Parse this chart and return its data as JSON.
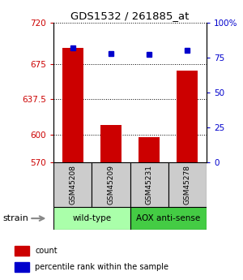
{
  "title": "GDS1532 / 261885_at",
  "samples": [
    "GSM45208",
    "GSM45209",
    "GSM45231",
    "GSM45278"
  ],
  "count_values": [
    693,
    610,
    597,
    668
  ],
  "percentile_values": [
    82,
    78,
    77,
    80
  ],
  "ylim_left": [
    570,
    720
  ],
  "ylim_right": [
    0,
    100
  ],
  "yticks_left": [
    570,
    600,
    637.5,
    675,
    720
  ],
  "yticks_right": [
    0,
    25,
    50,
    75,
    100
  ],
  "ytick_labels_right": [
    "0",
    "25",
    "50",
    "75",
    "100%"
  ],
  "bar_color": "#cc0000",
  "dot_color": "#0000cc",
  "groups": [
    {
      "label": "wild-type",
      "indices": [
        0,
        1
      ],
      "color": "#aaffaa"
    },
    {
      "label": "AOX anti-sense",
      "indices": [
        2,
        3
      ],
      "color": "#44cc44"
    }
  ],
  "strain_label": "strain",
  "legend_items": [
    {
      "color": "#cc0000",
      "label": "count"
    },
    {
      "color": "#0000cc",
      "label": "percentile rank within the sample"
    }
  ],
  "bar_width": 0.55,
  "left_axis_color": "#cc0000",
  "right_axis_color": "#0000cc"
}
